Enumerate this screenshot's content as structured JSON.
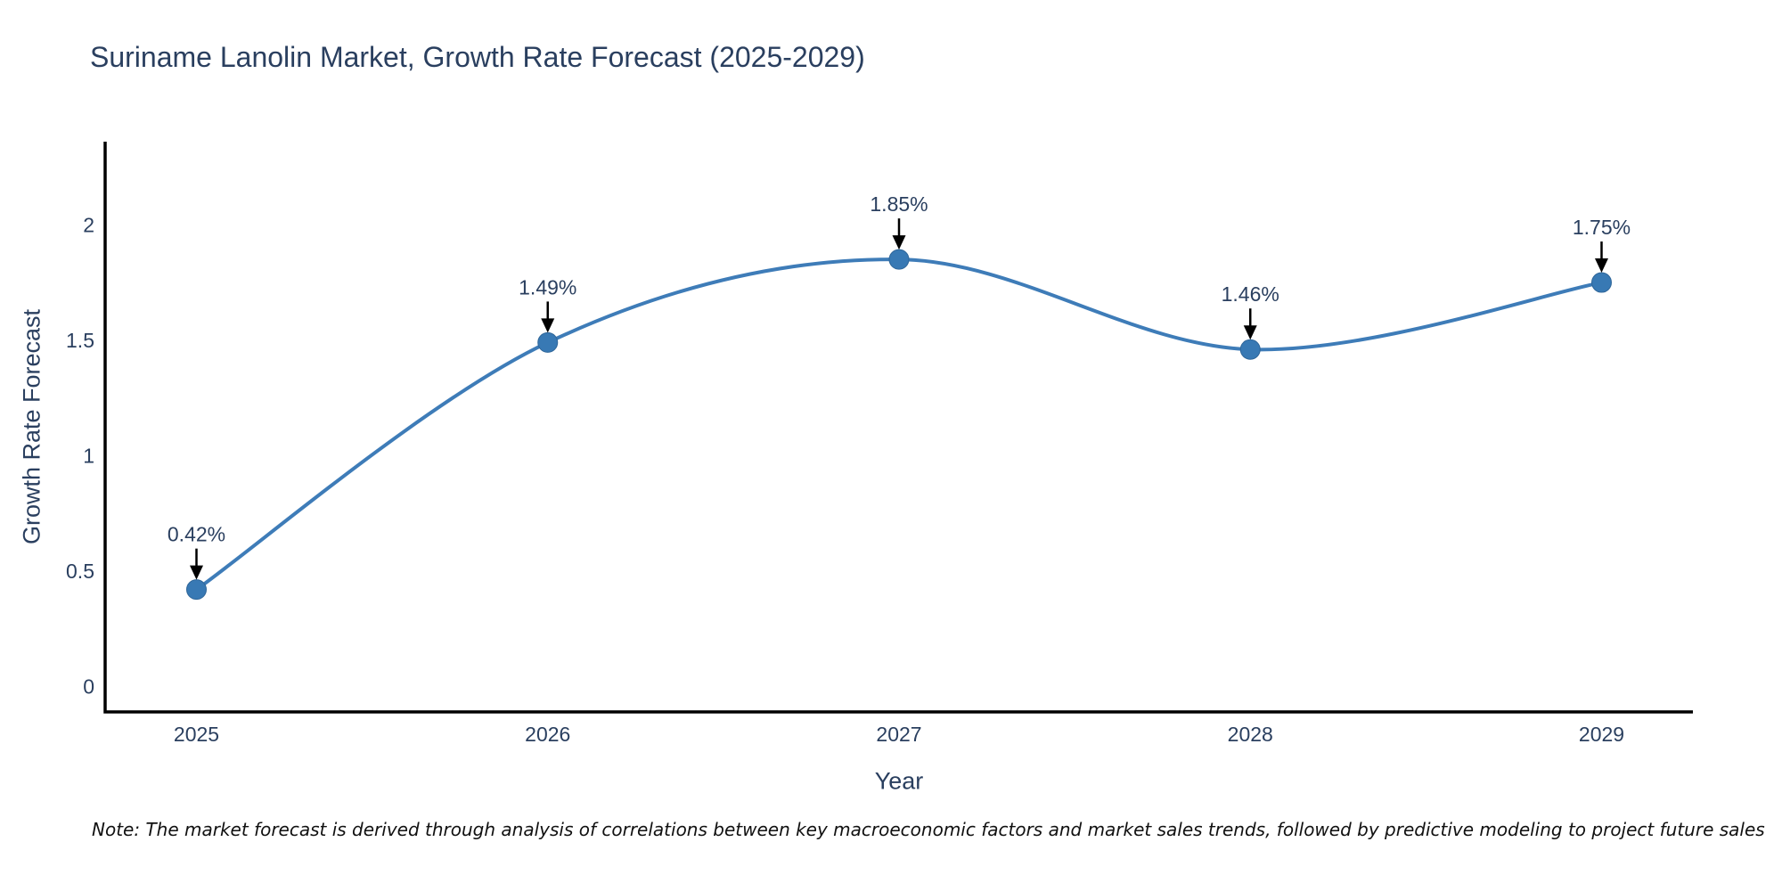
{
  "chart_data": {
    "type": "line",
    "title": "Suriname Lanolin Market, Growth Rate Forecast (2025-2029)",
    "xlabel": "Year",
    "ylabel": "Growth Rate Forecast",
    "x": [
      2025,
      2026,
      2027,
      2028,
      2029
    ],
    "y": [
      0.42,
      1.49,
      1.85,
      1.46,
      1.75
    ],
    "point_labels": [
      "0.42%",
      "1.49%",
      "1.85%",
      "1.46%",
      "1.75%"
    ],
    "xtick_labels": [
      "2025",
      "2026",
      "2027",
      "2028",
      "2029"
    ],
    "ytick_values": [
      0,
      0.5,
      1,
      1.5,
      2
    ],
    "ytick_labels": [
      "0",
      "0.5",
      "1",
      "1.5",
      "2"
    ],
    "xlim": [
      2024.74,
      2029.26
    ],
    "ylim": [
      -0.11,
      2.36
    ],
    "line_shape": "spline",
    "grid": false,
    "legend_position": "none",
    "colors": {
      "line": "#3e7cb8",
      "marker_fill": "#3879b4",
      "marker_edge": "#2f6699",
      "axis_line": "#000000",
      "text": "#2a3f5f",
      "arrow": "#000000"
    }
  },
  "note": {
    "text": "Note: The market forecast is derived through analysis of correlations between key macroeconomic factors and market sales trends, followed by predictive modeling to project future sales"
  }
}
